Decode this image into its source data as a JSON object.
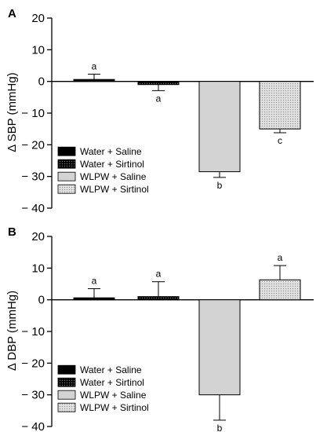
{
  "chart_data": [
    {
      "type": "bar",
      "panel": "A",
      "ylabel": "Δ SBP (mmHg)",
      "ylim": [
        -40,
        20
      ],
      "yticks": [
        20,
        10,
        0,
        -10,
        -20,
        -30,
        -40
      ],
      "ytick_labels": [
        "20",
        "10",
        "0",
        "− 10",
        "− 20",
        "− 30",
        "− 40"
      ],
      "categories": [
        "Water + Saline",
        "Water + Sirtinol",
        "WLPW + Saline",
        "WLPW + Sirtinol"
      ],
      "values": [
        0.5,
        -1.0,
        -28.5,
        -15.0
      ],
      "errors": [
        1.8,
        1.9,
        1.8,
        1.2
      ],
      "letters": [
        "a",
        "a",
        "b",
        "c"
      ],
      "legend": [
        "Water + Saline",
        "Water + Sirtinol",
        "WLPW + Saline",
        "WLPW + Sirtinol"
      ],
      "legend_position": "bottom-left",
      "grid": false
    },
    {
      "type": "bar",
      "panel": "B",
      "ylabel": "Δ DBP (mmHg)",
      "ylim": [
        -40,
        20
      ],
      "yticks": [
        20,
        10,
        0,
        -10,
        -20,
        -30,
        -40
      ],
      "ytick_labels": [
        "20",
        "10",
        "0",
        "− 10",
        "− 20",
        "− 30",
        "− 40"
      ],
      "categories": [
        "Water + Saline",
        "Water + Sirtinol",
        "WLPW + Saline",
        "WLPW + Sirtinol"
      ],
      "values": [
        0.3,
        1.0,
        -30.0,
        6.3
      ],
      "errors": [
        3.2,
        4.7,
        8.0,
        4.5
      ],
      "letters": [
        "a",
        "a",
        "b",
        "a"
      ],
      "legend": [
        "Water + Saline",
        "Water + Sirtinol",
        "WLPW + Saline",
        "WLPW + Sirtinol"
      ],
      "legend_position": "bottom-left",
      "grid": false
    }
  ],
  "colors": {
    "water_saline": "#000000",
    "water_sirtinol": "#1a1a1a",
    "wlpw_saline": "#d3d3d3",
    "wlpw_sirtinol": "#d9d9d9"
  }
}
